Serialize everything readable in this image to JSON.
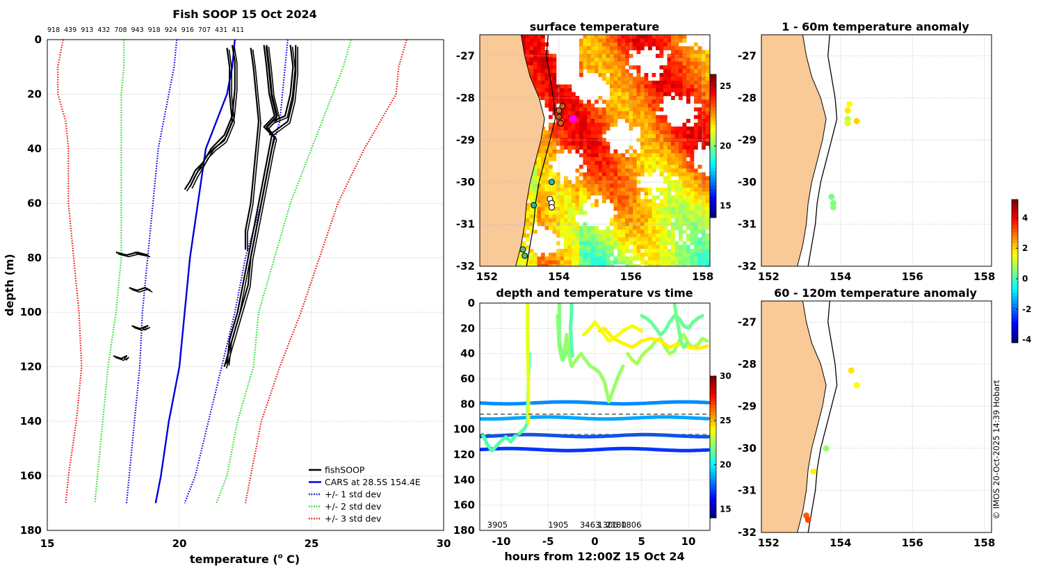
{
  "chart_data": [
    {
      "id": "profile",
      "type": "line",
      "title": "Fish SOOP 15 Oct 2024",
      "top_labels": [
        "918",
        "439",
        "913",
        "432",
        "708",
        "943",
        "918",
        "924",
        "916",
        "707",
        "431",
        "411"
      ],
      "xlabel": "temperature (",
      "xlabel_sup": "o",
      "xlabel_end": " C)",
      "ylabel": "depth (m)",
      "xlim": [
        15,
        30
      ],
      "ylim": [
        0,
        180
      ],
      "xticks": [
        15,
        20,
        25,
        30
      ],
      "yticks": [
        0,
        20,
        40,
        60,
        80,
        100,
        120,
        140,
        160,
        180
      ],
      "grid": true,
      "legend_position": "bottom-right",
      "legend": [
        {
          "label": "fishSOOP",
          "color": "#000000",
          "style": "solid"
        },
        {
          "label": "CARS at 28.5S 154.4E",
          "color": "#0000dd",
          "style": "solid"
        },
        {
          "label": "+/- 1 std dev",
          "color": "#0000dd",
          "style": "dotted"
        },
        {
          "label": "+/- 2 std dev",
          "color": "#22dd22",
          "style": "dotted"
        },
        {
          "label": "+/- 3 std dev",
          "color": "#ee1111",
          "style": "dotted"
        }
      ],
      "cars_depth": [
        0,
        10,
        20,
        30,
        40,
        60,
        80,
        100,
        120,
        140,
        160,
        170
      ],
      "cars_mean": [
        22.1,
        22.0,
        21.8,
        21.4,
        21.0,
        20.7,
        20.4,
        20.2,
        20.0,
        19.6,
        19.3,
        19.1
      ],
      "std1_lo": [
        19.9,
        19.8,
        19.6,
        19.4,
        19.2,
        19.0,
        18.8,
        18.6,
        18.5,
        18.3,
        18.1,
        18.0
      ],
      "std1_hi": [
        24.1,
        24.0,
        23.9,
        23.8,
        23.5,
        23.1,
        22.5,
        22.1,
        21.6,
        21.1,
        20.6,
        20.2
      ],
      "std2_lo": [
        17.9,
        17.9,
        17.8,
        17.8,
        17.8,
        17.8,
        17.8,
        17.6,
        17.3,
        17.1,
        16.9,
        16.8
      ],
      "std2_hi": [
        26.5,
        26.2,
        25.8,
        25.4,
        25.0,
        24.2,
        23.6,
        23.0,
        22.8,
        22.2,
        21.8,
        21.4
      ],
      "std3_lo": [
        15.6,
        15.4,
        15.4,
        15.7,
        15.8,
        15.8,
        16.0,
        16.2,
        16.3,
        16.1,
        15.8,
        15.7
      ],
      "std3_hi": [
        28.6,
        28.3,
        28.2,
        27.6,
        27.0,
        26.0,
        25.3,
        24.6,
        23.8,
        23.1,
        22.7,
        22.5
      ],
      "fish_profiles": [
        {
          "depth": [
            3,
            10,
            20,
            30,
            37,
            40,
            43,
            45,
            48,
            52,
            55
          ],
          "temp": [
            21.8,
            21.9,
            21.9,
            22.0,
            21.7,
            21.3,
            21.0,
            20.9,
            20.6,
            20.4,
            20.2
          ]
        },
        {
          "depth": [
            2,
            8,
            18,
            28,
            35,
            40,
            45,
            50,
            54
          ],
          "temp": [
            22.0,
            22.1,
            22.1,
            22.0,
            21.7,
            21.2,
            20.9,
            20.6,
            20.4
          ]
        },
        {
          "depth": [
            3,
            10,
            20,
            30,
            40,
            50,
            60,
            70,
            77
          ],
          "temp": [
            22.7,
            22.8,
            22.9,
            23.0,
            22.9,
            22.8,
            22.7,
            22.5,
            22.5
          ]
        },
        {
          "depth": [
            2,
            10,
            20,
            28,
            32,
            36,
            40,
            50,
            60,
            70,
            80,
            90,
            100,
            110,
            120
          ],
          "temp": [
            23.3,
            23.4,
            23.5,
            23.7,
            23.3,
            23.6,
            23.5,
            23.3,
            23.1,
            22.9,
            22.7,
            22.6,
            22.3,
            22.0,
            21.7
          ]
        },
        {
          "depth": [
            2,
            10,
            20,
            28,
            32,
            35,
            40,
            50,
            60,
            70,
            80,
            90,
            100,
            110,
            119
          ],
          "temp": [
            23.2,
            23.3,
            23.4,
            23.6,
            23.2,
            23.5,
            23.4,
            23.2,
            23.0,
            22.8,
            22.6,
            22.4,
            22.2,
            21.9,
            21.8
          ]
        },
        {
          "depth": [
            2,
            10,
            20,
            28,
            30,
            32
          ],
          "temp": [
            24.2,
            24.3,
            24.2,
            24.0,
            23.5,
            23.3
          ]
        },
        {
          "depth": [
            2,
            12,
            22,
            30,
            35
          ],
          "temp": [
            24.4,
            24.4,
            24.3,
            24.1,
            23.4
          ]
        },
        {
          "depth": [
            78,
            79,
            78,
            79,
            78
          ],
          "temp": [
            17.6,
            18.0,
            18.4,
            18.8,
            18.3
          ]
        },
        {
          "depth": [
            91,
            92,
            91,
            92
          ],
          "temp": [
            18.1,
            18.4,
            18.7,
            18.9
          ]
        },
        {
          "depth": [
            105,
            106,
            105,
            106
          ],
          "temp": [
            18.2,
            18.5,
            18.8,
            18.6
          ]
        },
        {
          "depth": [
            116,
            117,
            116,
            117
          ],
          "temp": [
            17.5,
            17.8,
            18.0,
            17.9
          ]
        }
      ]
    },
    {
      "id": "sst_map",
      "type": "heatmap",
      "title": "surface temperature",
      "xlim": [
        151.8,
        158.2
      ],
      "ylim": [
        -32,
        -26.5
      ],
      "xticks": [
        152,
        154,
        156,
        158
      ],
      "yticks": [
        -27,
        -28,
        -29,
        -30,
        -31,
        -32
      ],
      "colorbar_ticks": [
        15,
        20,
        25
      ],
      "clim": [
        14,
        26
      ],
      "stations": [
        {
          "lon": 154.0,
          "lat": -28.3
        },
        {
          "lon": 154.1,
          "lat": -28.2
        },
        {
          "lon": 154.0,
          "lat": -28.45
        },
        {
          "lon": 154.05,
          "lat": -28.6
        },
        {
          "lon": 153.8,
          "lat": -30.0
        },
        {
          "lon": 153.3,
          "lat": -30.55
        },
        {
          "lon": 153.75,
          "lat": -30.4
        },
        {
          "lon": 153.8,
          "lat": -30.5
        },
        {
          "lon": 153.8,
          "lat": -30.6
        },
        {
          "lon": 153.0,
          "lat": -31.6
        },
        {
          "lon": 153.05,
          "lat": -31.75
        }
      ],
      "station_colors": [
        "#d76b2a",
        "#c8661f",
        "#b85c1c",
        "#cc6a24",
        "#2fb6a5",
        "#37b09b",
        "#ffffff",
        "#ffffff",
        "#ffffff",
        "#48c08d",
        "#4db58b"
      ],
      "highlight": {
        "lon": 154.4,
        "lat": -28.5,
        "color": "#ff00ff"
      }
    },
    {
      "id": "time_series",
      "type": "scatter",
      "title": "depth and temperature vs time",
      "xlabel": "hours from 12:00Z 15 Oct 24",
      "xlim": [
        -12.3,
        12.3
      ],
      "ylim": [
        0,
        180
      ],
      "xticks": [
        -10,
        -5,
        0,
        5,
        10
      ],
      "yticks": [
        0,
        20,
        40,
        60,
        80,
        100,
        120,
        140,
        160,
        180
      ],
      "colorbar_ticks": [
        15,
        20,
        25,
        30
      ],
      "clim": [
        14,
        30
      ],
      "hlines": [
        88,
        104
      ],
      "bottom_labels": [
        {
          "x": -11.5,
          "text": "3905"
        },
        {
          "x": -5.0,
          "text": "1905"
        },
        {
          "x": -1.6,
          "text": "3463"
        },
        {
          "x": 0.3,
          "text": "1306"
        },
        {
          "x": 1.2,
          "text": "2180"
        },
        {
          "x": 2.8,
          "text": "1806"
        }
      ],
      "bands": [
        {
          "depth": 79,
          "temp": 18.2
        },
        {
          "depth": 91,
          "temp": 18.6
        },
        {
          "depth": 105,
          "temp": 17.3
        },
        {
          "depth": 116,
          "temp": 16.8
        }
      ],
      "tracks": [
        {
          "temp": 21.3,
          "t": [
            -12.0,
            -11.5,
            -11.0,
            -10.5,
            -10.0,
            -9.5,
            -9.0,
            -8.5,
            -8.0,
            -7.5,
            -7.2,
            -7.1,
            -7.0
          ],
          "d": [
            104,
            112,
            117,
            113,
            109,
            106,
            110,
            105,
            103,
            99,
            95,
            60,
            40
          ]
        },
        {
          "temp": 23.6,
          "t": [
            -7.2,
            -7.2,
            -7.1,
            -7.1
          ],
          "d": [
            0,
            30,
            60,
            95
          ]
        },
        {
          "temp": 22.4,
          "t": [
            -4.0,
            -3.8,
            -3.5,
            -3.2,
            -3.0,
            -2.8,
            -2.5,
            -2.0,
            -1.5,
            -1.0,
            -0.5,
            0.0,
            0.5,
            1.0,
            1.5,
            2.0,
            2.5,
            3.0
          ],
          "d": [
            10,
            35,
            45,
            35,
            25,
            40,
            50,
            45,
            40,
            45,
            50,
            52,
            55,
            62,
            78,
            68,
            58,
            50
          ]
        },
        {
          "temp": 22.0,
          "t": [
            -3.8,
            -3.8,
            -3.8,
            -3.4,
            -3.0
          ],
          "d": [
            0,
            15,
            30,
            45,
            38
          ]
        },
        {
          "temp": 23.8,
          "t": [
            -1.2,
            -0.5,
            0.0,
            0.5,
            1.0,
            1.5,
            2.0,
            2.5,
            3.0,
            3.5,
            4.0,
            4.5,
            5.0
          ],
          "d": [
            25,
            20,
            15,
            20,
            25,
            30,
            28,
            25,
            22,
            20,
            18,
            20,
            22
          ]
        },
        {
          "temp": 22.6,
          "t": [
            3.5,
            4.0,
            4.5,
            5.0,
            5.5,
            6.0,
            6.5,
            7.0,
            7.5,
            8.0,
            8.5,
            9.0,
            9.5,
            10.0,
            10.5,
            11.0,
            11.5,
            12.0
          ],
          "d": [
            40,
            45,
            48,
            42,
            38,
            35,
            30,
            28,
            35,
            40,
            38,
            30,
            25,
            32,
            35,
            33,
            28,
            30
          ]
        },
        {
          "temp": 24.2,
          "t": [
            0.5,
            1.0,
            2.0,
            3.0,
            4.0,
            5.0,
            6.0,
            7.0,
            8.0,
            9.0,
            10.0,
            11.0,
            12.0
          ],
          "d": [
            22,
            20,
            28,
            32,
            35,
            30,
            28,
            30,
            35,
            32,
            35,
            36,
            34
          ]
        },
        {
          "temp": 21.6,
          "t": [
            5.0,
            5.5,
            6.0,
            6.5,
            7.0,
            7.5,
            8.0,
            8.5,
            9.0,
            9.5,
            10.0,
            10.5,
            11.0,
            11.5
          ],
          "d": [
            10,
            12,
            15,
            20,
            25,
            22,
            15,
            10,
            12,
            18,
            20,
            15,
            12,
            10
          ]
        },
        {
          "temp": 21.3,
          "t": [
            -2.5,
            -2.5,
            -2.6,
            -2.5,
            -2.4
          ],
          "d": [
            0,
            8,
            20,
            35,
            42
          ]
        },
        {
          "temp": 21.8,
          "t": [
            8.5,
            8.7,
            9.0,
            9.2,
            9.5,
            9.8
          ],
          "d": [
            0,
            10,
            22,
            30,
            35,
            32
          ]
        }
      ]
    },
    {
      "id": "anom_shallow",
      "type": "scatter",
      "title": "1 - 60m temperature anomaly",
      "xlim": [
        151.8,
        158.2
      ],
      "ylim": [
        -32,
        -26.5
      ],
      "xticks": [
        152,
        154,
        156,
        158
      ],
      "yticks": [
        -27,
        -28,
        -29,
        -30,
        -31,
        -32
      ],
      "points": [
        {
          "lon": 154.25,
          "lat": -28.15,
          "anomaly": 1.6
        },
        {
          "lon": 154.2,
          "lat": -28.3,
          "anomaly": 1.9
        },
        {
          "lon": 154.2,
          "lat": -28.5,
          "anomaly": 1.1
        },
        {
          "lon": 154.45,
          "lat": -28.55,
          "anomaly": 2.1
        },
        {
          "lon": 154.2,
          "lat": -28.6,
          "anomaly": 1.4
        },
        {
          "lon": 153.75,
          "lat": -30.35,
          "anomaly": 0.4
        },
        {
          "lon": 153.8,
          "lat": -30.5,
          "anomaly": 0.5
        },
        {
          "lon": 153.8,
          "lat": -30.6,
          "anomaly": 0.6
        }
      ]
    },
    {
      "id": "anom_deep",
      "type": "scatter",
      "title": "60 - 120m temperature anomaly",
      "xlim": [
        151.8,
        158.2
      ],
      "ylim": [
        -32,
        -26.5
      ],
      "xticks": [
        152,
        154,
        156,
        158
      ],
      "yticks": [
        -27,
        -28,
        -29,
        -30,
        -31,
        -32
      ],
      "colorbar_ticks": [
        4,
        2,
        0,
        -2,
        -4
      ],
      "clim": [
        -4.2,
        5.2
      ],
      "points": [
        {
          "lon": 154.3,
          "lat": -28.15,
          "anomaly": 1.9
        },
        {
          "lon": 154.45,
          "lat": -28.5,
          "anomaly": 1.7
        },
        {
          "lon": 153.6,
          "lat": -30.0,
          "anomaly": 0.7
        },
        {
          "lon": 153.25,
          "lat": -30.55,
          "anomaly": 1.8
        },
        {
          "lon": 153.05,
          "lat": -31.6,
          "anomaly": 3.2
        },
        {
          "lon": 153.1,
          "lat": -31.7,
          "anomaly": 3.4
        }
      ]
    }
  ],
  "credit": "© IMOS 20-Oct-2025 14:39 Hobart",
  "colors": {
    "land": "#f9c997",
    "fish": "#000000",
    "cars": "#0000dd",
    "std2": "#22dd22",
    "std3": "#ee1111",
    "highlight": "#ff00ff"
  }
}
